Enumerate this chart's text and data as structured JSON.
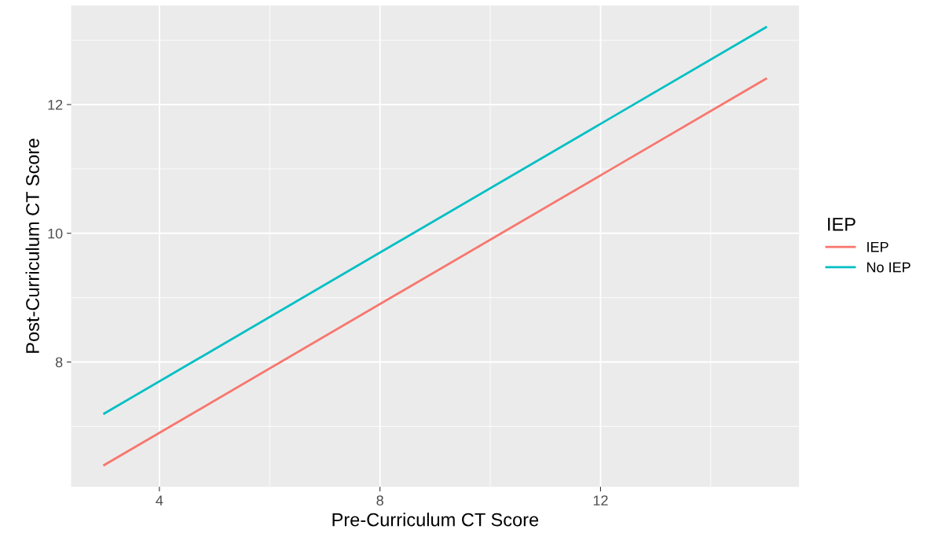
{
  "chart_data": {
    "type": "line",
    "xlabel": "Pre-Curriculum CT Score",
    "ylabel": "Post-Curriculum CT Score",
    "legend_title": "IEP",
    "x": [
      3,
      15
    ],
    "series": [
      {
        "name": "IEP",
        "color": "#f8766d",
        "values": [
          6.4,
          12.4
        ]
      },
      {
        "name": "No IEP",
        "color": "#00bfc4",
        "values": [
          7.2,
          13.2
        ]
      }
    ],
    "xlim": [
      2.4,
      15.6
    ],
    "ylim": [
      6.06,
      13.54
    ],
    "xticks": [
      4,
      8,
      12
    ],
    "yticks": [
      8,
      10,
      12
    ],
    "grid": true,
    "legend": "right",
    "line_style": "solid",
    "marker": "none"
  }
}
